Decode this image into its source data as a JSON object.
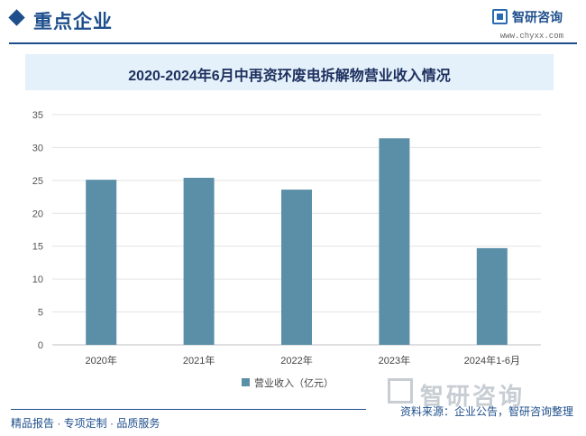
{
  "header": {
    "section_title": "重点企业",
    "brand_name": "智研咨询",
    "brand_url": "www.chyxx.com"
  },
  "chart_data": {
    "type": "bar",
    "title": "2020-2024年6月中再资环废电拆解物营业收入情况",
    "categories": [
      "2020年",
      "2021年",
      "2022年",
      "2023年",
      "2024年1-6月"
    ],
    "series": [
      {
        "name": "营业收入（亿元）",
        "values": [
          25.1,
          25.4,
          23.6,
          31.4,
          14.7
        ],
        "color": "#5b8fa8"
      }
    ],
    "ylim": [
      0,
      35
    ],
    "yticks": [
      0,
      5,
      10,
      15,
      20,
      25,
      30,
      35
    ],
    "grid": true,
    "legend": "bottom"
  },
  "footer": {
    "left": "精品报告 · 专项定制 · 品质服务",
    "right": "资料来源：企业公告，智研咨询整理",
    "watermark_brand": "智研咨询"
  }
}
